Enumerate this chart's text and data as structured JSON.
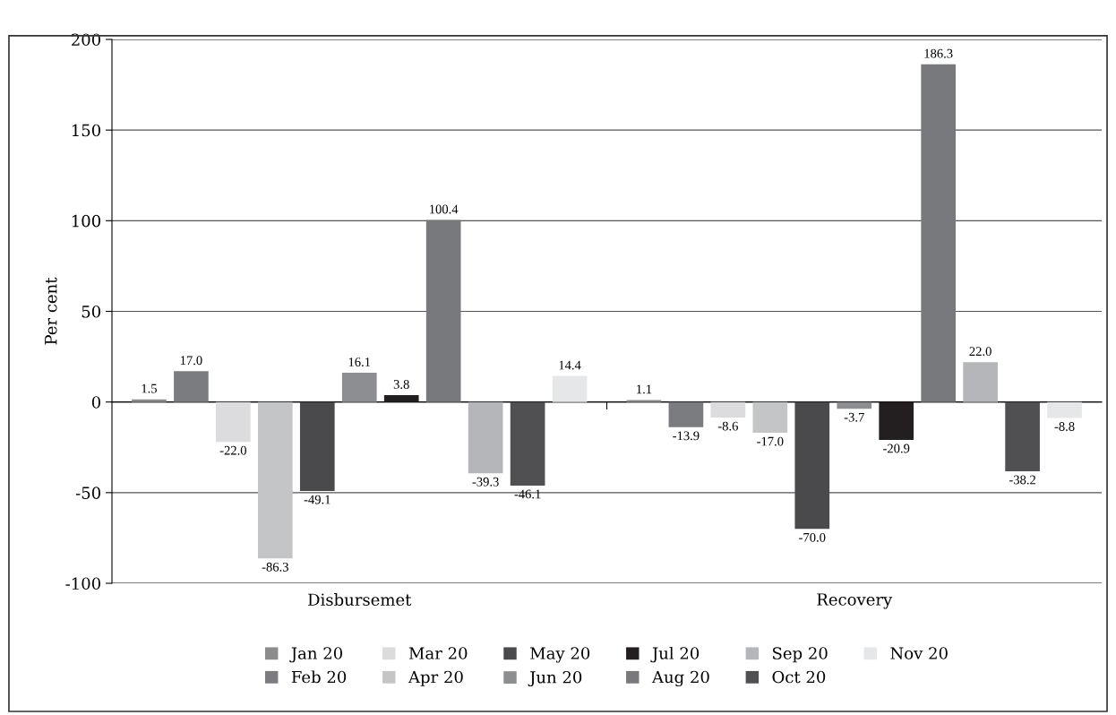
{
  "chart_data": {
    "type": "bar",
    "ylabel": "Per cent",
    "categories": [
      "Disbursemet",
      "Recovery"
    ],
    "series": [
      {
        "name": "Jan 20",
        "color": "#8c8c8e",
        "values": [
          1.5,
          1.1
        ],
        "value_labels": [
          "1.5",
          "1.1"
        ]
      },
      {
        "name": "Feb 20",
        "color": "#7b7c7f",
        "values": [
          17.0,
          -13.9
        ],
        "value_labels": [
          "17.0",
          "-13.9"
        ]
      },
      {
        "name": "Mar 20",
        "color": "#dcdcde",
        "values": [
          -22.0,
          -8.6
        ],
        "value_labels": [
          "-22.0",
          "-8.6"
        ]
      },
      {
        "name": "Apr 20",
        "color": "#c4c5c7",
        "values": [
          -86.3,
          -17.0
        ],
        "value_labels": [
          "-86.3",
          "-17.0"
        ]
      },
      {
        "name": "May 20",
        "color": "#4a4a4c",
        "values": [
          -49.1,
          -70.0
        ],
        "value_labels": [
          "-49.1",
          "-70.0"
        ]
      },
      {
        "name": "Jun 20",
        "color": "#8d8e91",
        "values": [
          16.1,
          -3.7
        ],
        "value_labels": [
          "16.1",
          "-3.7"
        ]
      },
      {
        "name": "Jul 20",
        "color": "#231f20",
        "values": [
          3.8,
          -20.9
        ],
        "value_labels": [
          "3.8",
          "-20.9"
        ]
      },
      {
        "name": "Aug 20",
        "color": "#78797c",
        "values": [
          100.4,
          186.3
        ],
        "value_labels": [
          "100.4",
          "186.3"
        ]
      },
      {
        "name": "Sep 20",
        "color": "#b5b6b9",
        "values": [
          -39.3,
          22.0
        ],
        "value_labels": [
          "-39.3",
          "22.0"
        ]
      },
      {
        "name": "Oct 20",
        "color": "#505052",
        "values": [
          -46.1,
          -38.2
        ],
        "value_labels": [
          "-46.1",
          "-38.2"
        ]
      },
      {
        "name": "Nov 20",
        "color": "#e6e7e8",
        "values": [
          14.4,
          -8.8
        ],
        "value_labels": [
          "14.4",
          "-8.8"
        ]
      }
    ],
    "ylim": [
      -100,
      200
    ],
    "yticks": [
      {
        "value": -100,
        "label": "-100"
      },
      {
        "value": -50,
        "label": "-50"
      },
      0,
      50,
      100,
      150,
      200
    ],
    "grid": "y",
    "legend": "bottom"
  }
}
